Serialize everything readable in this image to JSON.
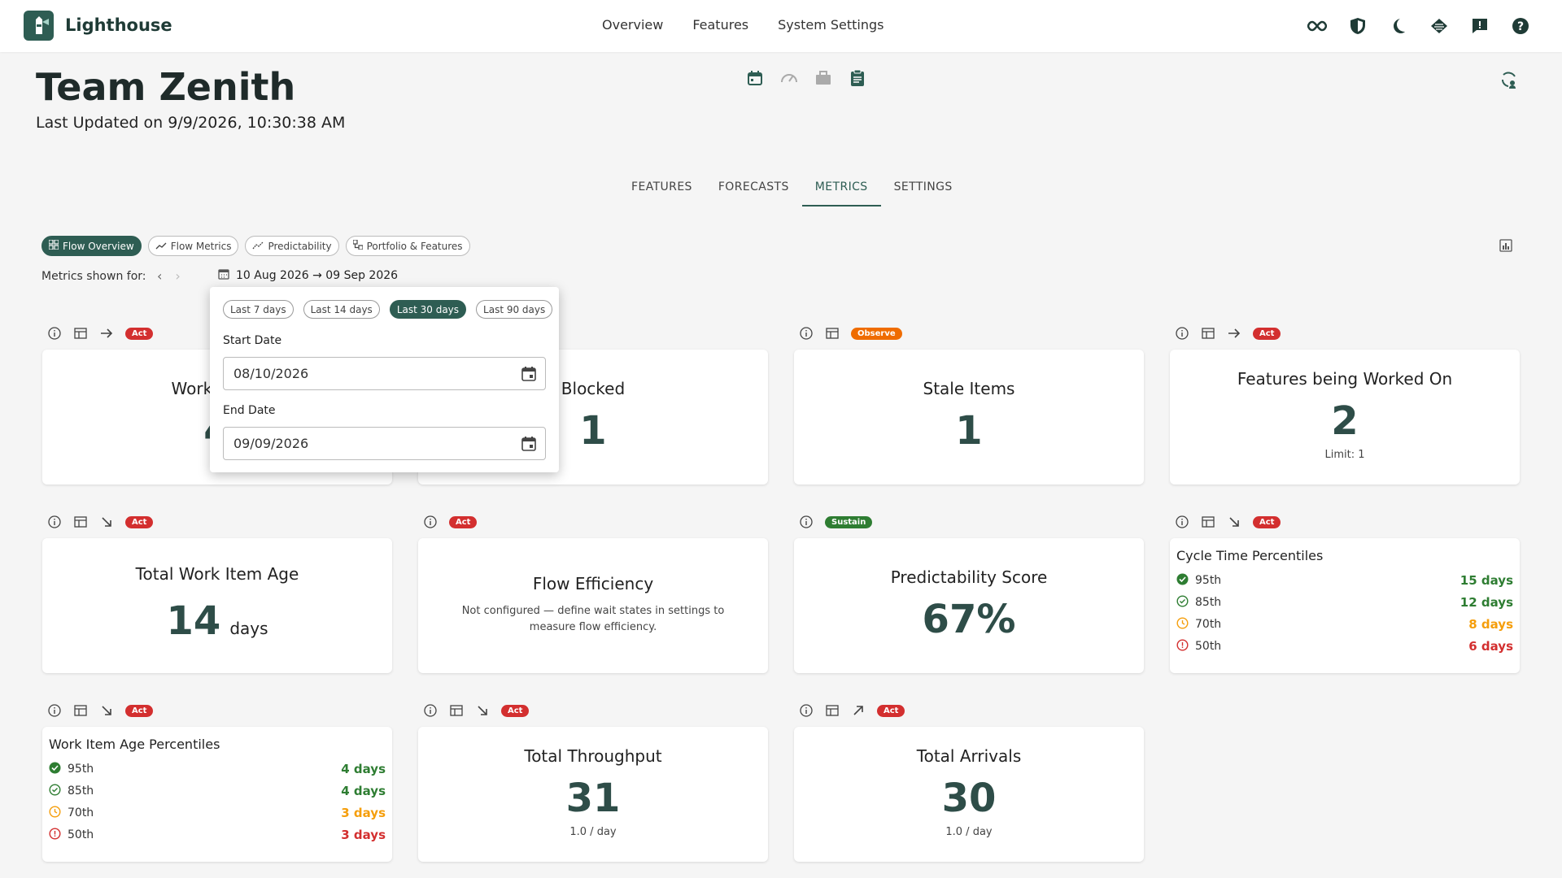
{
  "app": {
    "name": "Lighthouse"
  },
  "topnav": [
    "Overview",
    "Features",
    "System Settings"
  ],
  "page": {
    "title": "Team Zenith",
    "updated": "Last Updated on 9/9/2026, 10:30:38 AM"
  },
  "tabs": [
    {
      "label": "FEATURES",
      "active": false
    },
    {
      "label": "FORECASTS",
      "active": false
    },
    {
      "label": "METRICS",
      "active": true
    },
    {
      "label": "SETTINGS",
      "active": false
    }
  ],
  "chips": [
    {
      "label": "Flow Overview",
      "icon": "grid-icon",
      "active": true
    },
    {
      "label": "Flow Metrics",
      "icon": "trend-icon",
      "active": false
    },
    {
      "label": "Predictability",
      "icon": "scatter-icon",
      "active": false
    },
    {
      "label": "Portfolio & Features",
      "icon": "hierarchy-icon",
      "active": false
    }
  ],
  "metrics_shown_for": "Metrics shown for:",
  "date_range": "10 Aug 2026 → 09 Sep 2026",
  "popover": {
    "presets": [
      {
        "label": "Last 7 days",
        "active": false
      },
      {
        "label": "Last 14 days",
        "active": false
      },
      {
        "label": "Last 30 days",
        "active": true
      },
      {
        "label": "Last 90 days",
        "active": false
      }
    ],
    "start_label": "Start Date",
    "start_value": "08/10/2026",
    "end_label": "End Date",
    "end_value": "09/09/2026"
  },
  "badges": {
    "act": "Act",
    "observe": "Observe",
    "sustain": "Sustain"
  },
  "cards": {
    "wip": {
      "title": "Work Items",
      "value": "4"
    },
    "blocked": {
      "title": "Blocked",
      "value": "1"
    },
    "stale": {
      "title": "Stale Items",
      "value": "1"
    },
    "features": {
      "title": "Features being Worked On",
      "value": "2",
      "sub": "Limit: 1"
    },
    "age": {
      "title": "Total Work Item Age",
      "value": "14",
      "unit": "days"
    },
    "flow_eff": {
      "title": "Flow Efficiency",
      "sub": "Not configured — define wait states in settings to measure flow efficiency."
    },
    "predict": {
      "title": "Predictability Score",
      "value": "67%"
    },
    "cycle": {
      "title": "Cycle Time Percentiles",
      "rows": [
        {
          "label": "95th",
          "value": "15 days",
          "color": "#2e7d32",
          "icon": "check-circle-icon"
        },
        {
          "label": "85th",
          "value": "12 days",
          "color": "#2e7d32",
          "icon": "check-circle-outline-icon"
        },
        {
          "label": "70th",
          "value": "8 days",
          "color": "#f59e0b",
          "icon": "clock-icon"
        },
        {
          "label": "50th",
          "value": "6 days",
          "color": "#d32f2f",
          "icon": "alert-circle-icon"
        }
      ]
    },
    "age_pct": {
      "title": "Work Item Age Percentiles",
      "rows": [
        {
          "label": "95th",
          "value": "4 days",
          "color": "#2e7d32",
          "icon": "check-circle-icon"
        },
        {
          "label": "85th",
          "value": "4 days",
          "color": "#2e7d32",
          "icon": "check-circle-outline-icon"
        },
        {
          "label": "70th",
          "value": "3 days",
          "color": "#f59e0b",
          "icon": "clock-icon"
        },
        {
          "label": "50th",
          "value": "3 days",
          "color": "#d32f2f",
          "icon": "alert-circle-icon"
        }
      ]
    },
    "throughput": {
      "title": "Total Throughput",
      "value": "31",
      "sub": "1.0 / day"
    },
    "arrivals": {
      "title": "Total Arrivals",
      "value": "30",
      "sub": "1.0 / day"
    }
  },
  "colors": {
    "accent": "#2e5d53",
    "act": "#d32f2f",
    "observe": "#ef6c00",
    "sustain": "#2e7d32"
  }
}
